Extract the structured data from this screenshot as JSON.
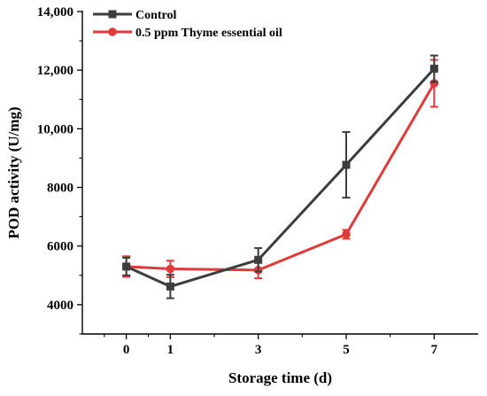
{
  "chart_data": {
    "type": "line",
    "title": "",
    "xlabel": "Storage time (d)",
    "ylabel": "POD activity (U/mg)",
    "x": [
      0,
      1,
      3,
      5,
      7
    ],
    "x_ticks": [
      0,
      1,
      3,
      5,
      7
    ],
    "x_tick_labels": [
      "0",
      "1",
      "3",
      "5",
      "7"
    ],
    "xlim": [
      -1,
      8
    ],
    "y_ticks": [
      4000,
      6000,
      8000,
      10000,
      12000,
      14000
    ],
    "y_tick_labels": [
      "4000",
      "6000",
      "8000",
      "10,000",
      "12,000",
      "14,000"
    ],
    "ylim": [
      3000,
      14000
    ],
    "grid": false,
    "legend_position": "top-left",
    "series": [
      {
        "name": "Control",
        "color": "#3d3d3d",
        "marker": "square",
        "values": [
          5300,
          4620,
          5530,
          8770,
          12050
        ],
        "error": [
          300,
          400,
          400,
          1120,
          450
        ]
      },
      {
        "name": "0.5 ppm Thyme essential oil",
        "color": "#e03a3a",
        "marker": "circle",
        "values": [
          5300,
          5220,
          5180,
          6400,
          11550
        ],
        "error": [
          350,
          280,
          280,
          150,
          800
        ]
      }
    ]
  }
}
